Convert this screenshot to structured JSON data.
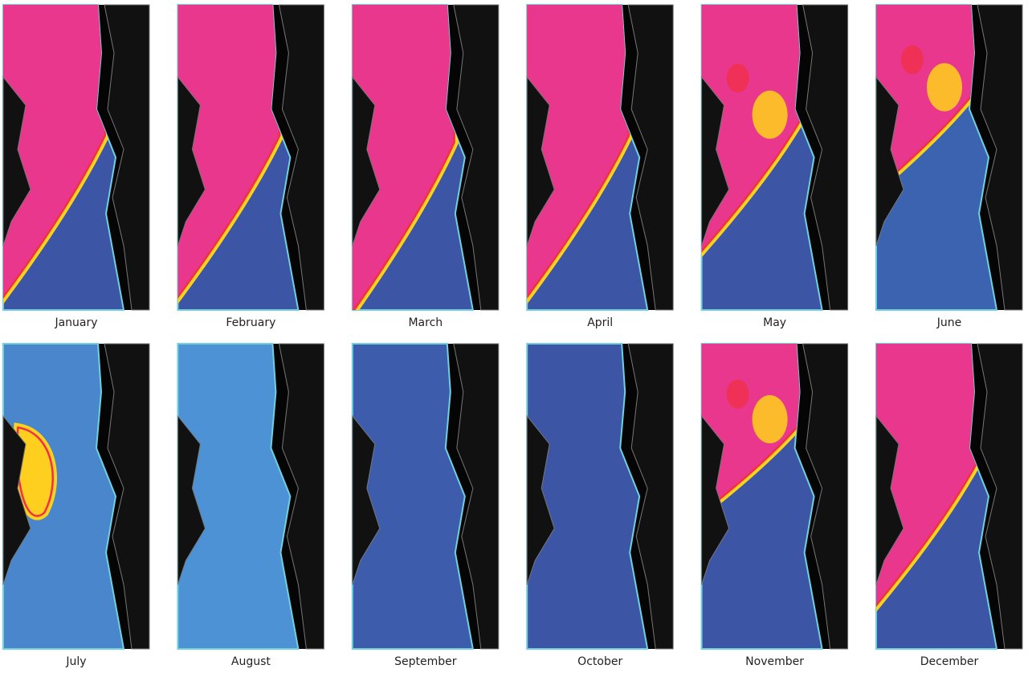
{
  "panels": [
    {
      "label": "January"
    },
    {
      "label": "February"
    },
    {
      "label": "March"
    },
    {
      "label": "April"
    },
    {
      "label": "May"
    },
    {
      "label": "June"
    },
    {
      "label": "July"
    },
    {
      "label": "August"
    },
    {
      "label": "September"
    },
    {
      "label": "October"
    },
    {
      "label": "November"
    },
    {
      "label": "December"
    }
  ]
}
